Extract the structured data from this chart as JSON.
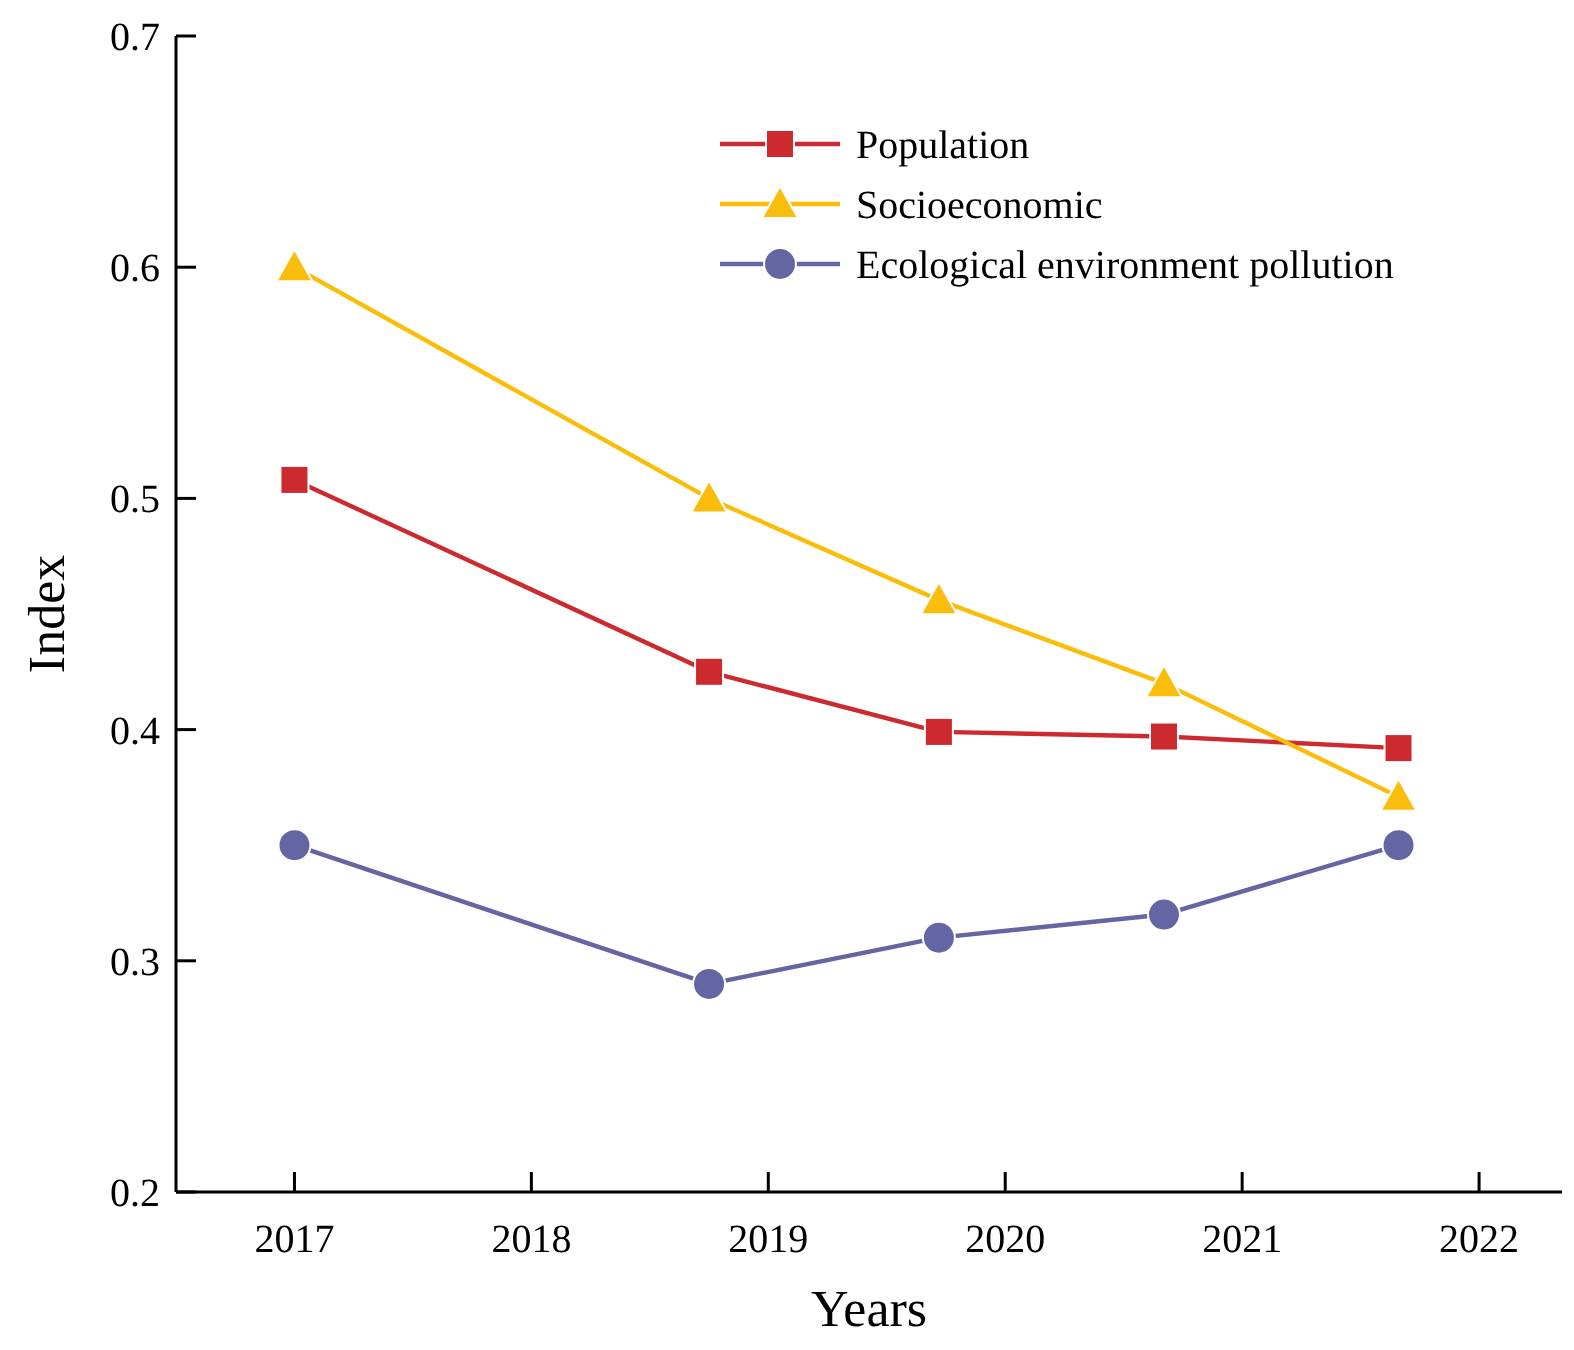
{
  "chart_data": {
    "type": "line",
    "xlabel": "Years",
    "ylabel": "Index",
    "xlim": [
      2016.5,
      2022.35
    ],
    "xticks": [
      2017,
      2018,
      2019,
      2020,
      2021,
      2022
    ],
    "ylim": [
      0.2,
      0.7
    ],
    "yticks": [
      0.2,
      0.3,
      0.4,
      0.5,
      0.6,
      0.7
    ],
    "grid": false,
    "legend": "top right",
    "line_style": "solid",
    "series": [
      {
        "name": "Population",
        "color": "#cc2a2e",
        "marker": "square",
        "x": [
          2017,
          2018.75,
          2019.72,
          2020.67,
          2021.66
        ],
        "values": [
          0.508,
          0.425,
          0.399,
          0.397,
          0.392
        ]
      },
      {
        "name": "Socioeconomic",
        "color": "#fbbd0c",
        "marker": "triangle",
        "x": [
          2017,
          2018.75,
          2019.72,
          2020.67,
          2021.66
        ],
        "values": [
          0.6,
          0.5,
          0.456,
          0.42,
          0.371
        ]
      },
      {
        "name": "Ecological environment pollution",
        "color": "#6465a3",
        "marker": "circle",
        "x": [
          2017,
          2018.75,
          2019.72,
          2020.67,
          2021.66
        ],
        "values": [
          0.35,
          0.29,
          0.31,
          0.32,
          0.35
        ]
      }
    ]
  }
}
